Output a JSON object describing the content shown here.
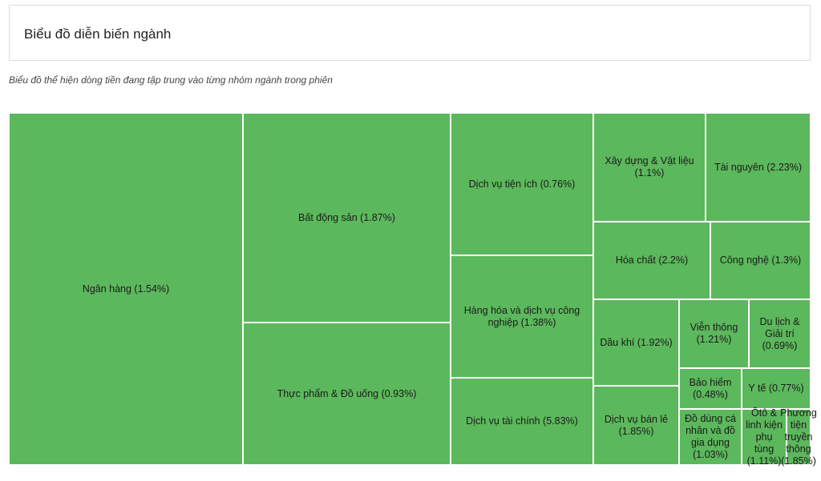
{
  "header": {
    "title": "Biểu đồ diễn biến ngành"
  },
  "subtitle": "Biểu đồ thể hiện dòng tiền đang tập trung vào từng nhóm ngành trong phiên",
  "colors": {
    "tile": "#5cb85c",
    "border": "#ffffff"
  },
  "chart_data": {
    "type": "treemap",
    "title": "",
    "series": [
      {
        "name": "Ngân hàng",
        "change_pct": 1.54,
        "label": "Ngân hàng (1.54%)"
      },
      {
        "name": "Bất động sản",
        "change_pct": 1.87,
        "label": "Bất động sản (1.87%)"
      },
      {
        "name": "Thực phẩm & Đồ uống",
        "change_pct": 0.93,
        "label": "Thực phẩm & Đồ uống (0.93%)"
      },
      {
        "name": "Dịch vụ tiện ích",
        "change_pct": 0.76,
        "label": "Dịch vụ tiện ích (0.76%)"
      },
      {
        "name": "Hàng hóa và dịch vụ công nghiệp",
        "change_pct": 1.38,
        "label": "Hàng hóa và dịch vụ công nghiệp (1.38%)"
      },
      {
        "name": "Dịch vụ tài chính",
        "change_pct": 5.83,
        "label": "Dịch vụ tài chính (5.83%)"
      },
      {
        "name": "Xây dựng & Vật liệu",
        "change_pct": 1.1,
        "label": "Xây dựng & Vật liệu (1.1%)"
      },
      {
        "name": "Tài nguyên",
        "change_pct": 2.23,
        "label": "Tài nguyên (2.23%)"
      },
      {
        "name": "Hóa chất",
        "change_pct": 2.2,
        "label": "Hóa chất (2.2%)"
      },
      {
        "name": "Công nghệ",
        "change_pct": 1.3,
        "label": "Công nghệ (1.3%)"
      },
      {
        "name": "Dầu khí",
        "change_pct": 1.92,
        "label": "Dầu khí (1.92%)"
      },
      {
        "name": "Viễn thông",
        "change_pct": 1.21,
        "label": "Viễn thông (1.21%)"
      },
      {
        "name": "Du lịch & Giải trí",
        "change_pct": 0.69,
        "label": "Du lịch & Giải trí (0.69%)"
      },
      {
        "name": "Dịch vụ bán lẻ",
        "change_pct": 1.85,
        "label": "Dịch vụ bán lẻ (1.85%)"
      },
      {
        "name": "Bảo hiểm",
        "change_pct": 0.48,
        "label": "Bảo hiểm (0.48%)"
      },
      {
        "name": "Y tế",
        "change_pct": 0.77,
        "label": "Y tế (0.77%)"
      },
      {
        "name": "Đồ dùng cá nhân và đồ gia dụng",
        "change_pct": 1.03,
        "label": "Đồ dùng cá nhân và đồ gia dụng (1.03%)"
      },
      {
        "name": "Ôtô & linh kiện phụ tùng",
        "change_pct": 1.11,
        "label": "Ôtô & linh kiện phụ tùng (1.11%)"
      },
      {
        "name": "Phương tiện truyền thông",
        "change_pct": 1.85,
        "label": "Phương tiện truyền thông (1.85%)"
      }
    ]
  }
}
